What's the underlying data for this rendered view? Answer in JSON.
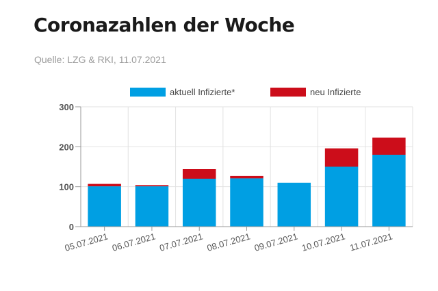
{
  "header": {
    "title": "Coronazahlen der Woche",
    "source": "Quelle: LZG & RKI, 11.07.2021"
  },
  "chart_data": {
    "type": "bar",
    "stacked": true,
    "categories": [
      "05.07.2021",
      "06.07.2021",
      "07.07.2021",
      "08.07.2021",
      "09.07.2021",
      "10.07.2021",
      "11.07.2021"
    ],
    "series": [
      {
        "name": "aktuell Infizierte*",
        "color": "#009fe3",
        "values": [
          101,
          101,
          120,
          121,
          110,
          150,
          180
        ]
      },
      {
        "name": "neu Infizierte",
        "color": "#cc0d1a",
        "values": [
          6,
          3,
          24,
          6,
          0,
          46,
          43
        ]
      }
    ],
    "ylim": [
      0,
      300
    ],
    "yticks": [
      0,
      100,
      200,
      300
    ],
    "grid": true,
    "legend": "top"
  }
}
